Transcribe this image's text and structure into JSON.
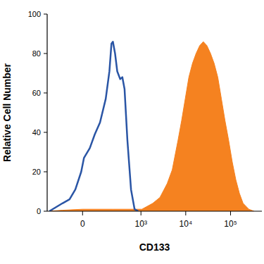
{
  "chart_data": {
    "type": "histogram",
    "x_label": "CD133",
    "y_label": "Relative Cell Number",
    "log": "x",
    "xlim": [
      -300,
      500000
    ],
    "xticks": [
      0,
      {
        "value": 1000,
        "label": "10³"
      },
      {
        "value": 10000,
        "label": "10⁴"
      },
      {
        "value": 100000,
        "label": "10⁵"
      }
    ],
    "ylim": [
      0,
      100
    ],
    "yticks": [
      0,
      20,
      40,
      60,
      80,
      100
    ],
    "grid": false,
    "series": [
      {
        "type": "area",
        "color": "#f58220",
        "x": [
          -267,
          -123,
          0,
          227,
          720,
          1050,
          1836,
          2660,
          3856,
          5000,
          6730,
          8100,
          9750,
          11750,
          14150,
          17000,
          20500,
          24700,
          29700,
          35800,
          43050,
          51900,
          62500,
          75150,
          90550,
          109100,
          131000,
          158000,
          190500,
          256000,
          332000
        ],
        "values": [
          0,
          0.5,
          1,
          1,
          1,
          1,
          4,
          7,
          14,
          21,
          36,
          46,
          57,
          68,
          75,
          80,
          84,
          86,
          84,
          80,
          75,
          68,
          57,
          46,
          36,
          25,
          16,
          9,
          4,
          1,
          0
        ]
      },
      {
        "type": "line",
        "color": "#2a55a5",
        "x": [
          -267,
          -123,
          -72,
          -38,
          -7,
          7,
          38,
          67,
          102,
          149,
          186,
          209,
          227,
          256,
          288,
          338,
          379,
          426,
          495,
          598,
          720,
          870
        ],
        "values": [
          0,
          4,
          6,
          11,
          20,
          27,
          32,
          39,
          45,
          57,
          71,
          85,
          86,
          80,
          71,
          67,
          68,
          62,
          36,
          11,
          1,
          0
        ]
      }
    ]
  }
}
